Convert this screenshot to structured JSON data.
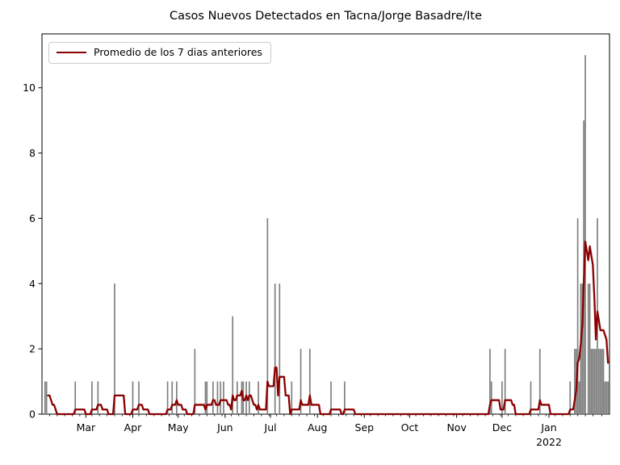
{
  "chart_data": {
    "type": "bar",
    "title": "Casos Nuevos Detectados en Tacna/Jorge Basadre/Ite",
    "legend": "Promedio de los 7 dias anteriores",
    "legend_position": "upper left",
    "bar_color": "#808080",
    "line_color": "#8b0000",
    "background_color": "#ffffff",
    "grid": false,
    "ylim": [
      0,
      11.65
    ],
    "yticks": [
      0,
      2,
      4,
      6,
      8,
      10
    ],
    "x_domain": [
      "2021-01-31",
      "2022-02-10"
    ],
    "xticks": [
      {
        "date": "2021-03-01",
        "label": "Mar"
      },
      {
        "date": "2021-04-01",
        "label": "Apr"
      },
      {
        "date": "2021-05-01",
        "label": "May"
      },
      {
        "date": "2021-06-01",
        "label": "Jun"
      },
      {
        "date": "2021-07-01",
        "label": "Jul"
      },
      {
        "date": "2021-08-01",
        "label": "Aug"
      },
      {
        "date": "2021-09-01",
        "label": "Sep"
      },
      {
        "date": "2021-10-01",
        "label": "Oct"
      },
      {
        "date": "2021-11-01",
        "label": "Nov"
      },
      {
        "date": "2021-12-01",
        "label": "Dec"
      },
      {
        "date": "2022-01-01",
        "label": "Jan",
        "year_label": "2022"
      }
    ],
    "average_window_days": 7,
    "series_start": "2021-01-29",
    "pre_axis_history": [
      {
        "date": "2021-01-30",
        "value": 1
      },
      {
        "date": "2021-01-31",
        "value": 1
      }
    ],
    "daily_cases": [
      {
        "date": "2021-02-02",
        "value": 1
      },
      {
        "date": "2021-02-03",
        "value": 1
      },
      {
        "date": "2021-02-22",
        "value": 1
      },
      {
        "date": "2021-03-05",
        "value": 1
      },
      {
        "date": "2021-03-09",
        "value": 1
      },
      {
        "date": "2021-03-20",
        "value": 4
      },
      {
        "date": "2021-04-01",
        "value": 1
      },
      {
        "date": "2021-04-05",
        "value": 1
      },
      {
        "date": "2021-04-24",
        "value": 1
      },
      {
        "date": "2021-04-27",
        "value": 1
      },
      {
        "date": "2021-04-30",
        "value": 1
      },
      {
        "date": "2021-05-12",
        "value": 2
      },
      {
        "date": "2021-05-19",
        "value": 1
      },
      {
        "date": "2021-05-20",
        "value": 1
      },
      {
        "date": "2021-05-24",
        "value": 1
      },
      {
        "date": "2021-05-27",
        "value": 1
      },
      {
        "date": "2021-05-29",
        "value": 1
      },
      {
        "date": "2021-05-31",
        "value": 1
      },
      {
        "date": "2021-06-06",
        "value": 3
      },
      {
        "date": "2021-06-09",
        "value": 1
      },
      {
        "date": "2021-06-12",
        "value": 1
      },
      {
        "date": "2021-06-13",
        "value": 1
      },
      {
        "date": "2021-06-15",
        "value": 1
      },
      {
        "date": "2021-06-17",
        "value": 1
      },
      {
        "date": "2021-06-23",
        "value": 1
      },
      {
        "date": "2021-06-29",
        "value": 6
      },
      {
        "date": "2021-07-04",
        "value": 4
      },
      {
        "date": "2021-07-07",
        "value": 4
      },
      {
        "date": "2021-07-15",
        "value": 1
      },
      {
        "date": "2021-07-21",
        "value": 2
      },
      {
        "date": "2021-07-27",
        "value": 2
      },
      {
        "date": "2021-08-10",
        "value": 1
      },
      {
        "date": "2021-08-19",
        "value": 1
      },
      {
        "date": "2021-11-23",
        "value": 2
      },
      {
        "date": "2021-11-24",
        "value": 1
      },
      {
        "date": "2021-12-01",
        "value": 1
      },
      {
        "date": "2021-12-03",
        "value": 2
      },
      {
        "date": "2021-12-20",
        "value": 1
      },
      {
        "date": "2021-12-26",
        "value": 2
      },
      {
        "date": "2022-01-15",
        "value": 1
      },
      {
        "date": "2022-01-18",
        "value": 2
      },
      {
        "date": "2022-01-19",
        "value": 2
      },
      {
        "date": "2022-01-20",
        "value": 6
      },
      {
        "date": "2022-01-21",
        "value": 1
      },
      {
        "date": "2022-01-22",
        "value": 4
      },
      {
        "date": "2022-01-23",
        "value": 4
      },
      {
        "date": "2022-01-24",
        "value": 9
      },
      {
        "date": "2022-01-25",
        "value": 11
      },
      {
        "date": "2022-01-27",
        "value": 4
      },
      {
        "date": "2022-01-28",
        "value": 4
      },
      {
        "date": "2022-01-29",
        "value": 2
      },
      {
        "date": "2022-01-30",
        "value": 2
      },
      {
        "date": "2022-01-31",
        "value": 2
      },
      {
        "date": "2022-02-01",
        "value": 2
      },
      {
        "date": "2022-02-02",
        "value": 6
      },
      {
        "date": "2022-02-03",
        "value": 2
      },
      {
        "date": "2022-02-04",
        "value": 2
      },
      {
        "date": "2022-02-05",
        "value": 2
      },
      {
        "date": "2022-02-06",
        "value": 2
      },
      {
        "date": "2022-02-07",
        "value": 1
      },
      {
        "date": "2022-02-08",
        "value": 1
      },
      {
        "date": "2022-02-09",
        "value": 1
      }
    ]
  }
}
